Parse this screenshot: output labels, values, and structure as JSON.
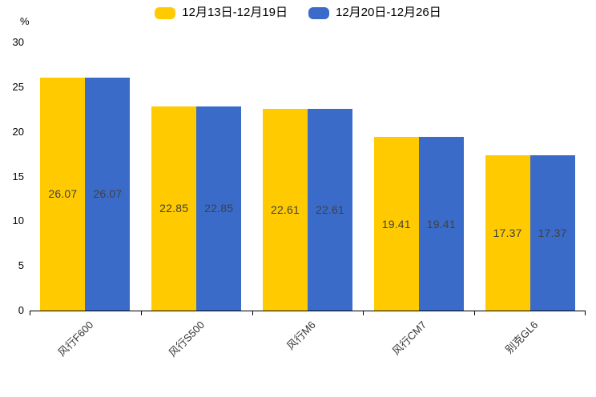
{
  "chart_data": {
    "type": "bar",
    "categories": [
      "风行F600",
      "风行S500",
      "风行M6",
      "风行CM7",
      "别克GL6"
    ],
    "series": [
      {
        "name": "12月13日-12月19日",
        "color": "#FFCB00",
        "values": [
          26.07,
          22.85,
          22.61,
          19.41,
          17.37
        ]
      },
      {
        "name": "12月20日-12月26日",
        "color": "#3A6BC9",
        "values": [
          26.07,
          22.85,
          22.61,
          19.41,
          17.37
        ]
      }
    ],
    "title": "",
    "xlabel": "",
    "ylabel": "%",
    "ylim": [
      0,
      30
    ],
    "yticks": [
      0,
      5,
      10,
      15,
      20,
      25,
      30
    ],
    "legend_position": "top-center",
    "grid": false,
    "value_labels_inside_bars": true,
    "x_label_rotation_deg": -45,
    "axis_color": "#000000",
    "value_label_color": "#404040"
  }
}
